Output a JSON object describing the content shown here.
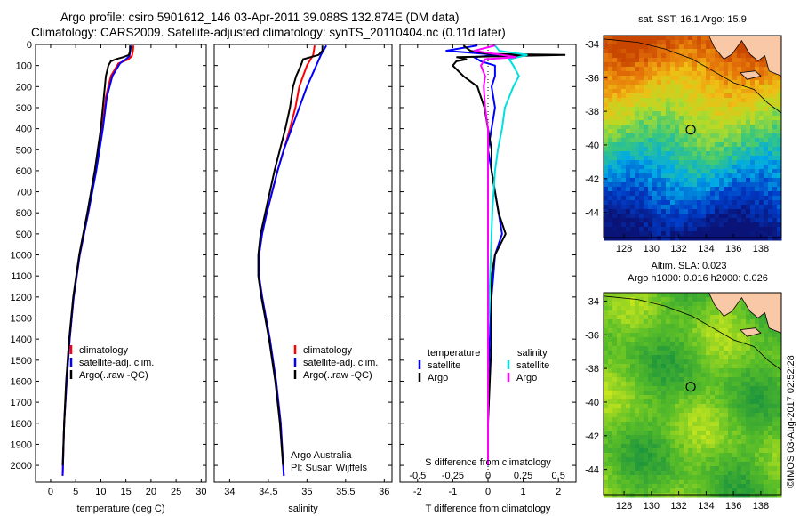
{
  "header": {
    "line1": "Argo profile: csiro 5901612_146 03-Apr-2011 39.088S 132.874E (DM data)",
    "line2": "Climatology: CARS2009. Satellite-adjusted climatology: synTS_20110404.nc (0.11d later)"
  },
  "credit": "©IMOS 03-Aug-2017 02:52:28",
  "colors": {
    "climatology": "#ff0000",
    "satellite": "#0000ff",
    "argo": "#000000",
    "sal_satellite": "#00e0e0",
    "sal_argo": "#ff00ff"
  },
  "chart_data": [
    {
      "type": "line",
      "xlabel": "temperature (deg C)",
      "ylabel": "",
      "xlim": [
        -3,
        31
      ],
      "ylim": [
        2080,
        0
      ],
      "xticks": [
        0,
        5,
        10,
        15,
        20,
        25,
        30
      ],
      "yticks": [
        0,
        100,
        200,
        300,
        400,
        500,
        600,
        700,
        800,
        900,
        1000,
        1100,
        1200,
        1300,
        1400,
        1500,
        1600,
        1700,
        1800,
        1900,
        2000
      ],
      "legend": [
        "climatology",
        "satellite-adj. clim.",
        "Argo(..raw -QC)"
      ],
      "legend_position": "lower-left",
      "series": [
        {
          "name": "climatology",
          "y": [
            5,
            30,
            55,
            70,
            90,
            150,
            250,
            400,
            600,
            800,
            1000,
            1200,
            1400,
            1600,
            1800,
            2050
          ],
          "x": [
            16.5,
            16.4,
            16.2,
            15.5,
            13.5,
            12.0,
            11.0,
            10.3,
            9.0,
            7.5,
            5.8,
            4.6,
            3.8,
            3.2,
            2.7,
            2.4
          ]
        },
        {
          "name": "satellite-adj. clim.",
          "y": [
            5,
            30,
            55,
            70,
            90,
            150,
            250,
            400,
            600,
            800,
            1000,
            1200,
            1400,
            1600,
            1800,
            2050
          ],
          "x": [
            16.0,
            15.9,
            15.7,
            15.0,
            13.8,
            12.3,
            11.2,
            10.4,
            9.1,
            7.5,
            5.8,
            4.6,
            3.8,
            3.2,
            2.7,
            2.4
          ]
        },
        {
          "name": "Argo(..raw -QC)",
          "y": [
            5,
            30,
            50,
            60,
            70,
            80,
            100,
            150,
            250,
            400,
            600,
            800,
            1000,
            1200,
            1400,
            1600,
            1800,
            2000
          ],
          "x": [
            15.8,
            15.8,
            15.6,
            14.5,
            13.0,
            12.0,
            11.5,
            11.0,
            10.6,
            10.0,
            8.8,
            7.3,
            5.7,
            4.5,
            3.7,
            3.1,
            2.7,
            2.4
          ]
        }
      ]
    },
    {
      "type": "line",
      "xlabel": "salinity",
      "ylabel": "",
      "xlim": [
        33.8,
        36.1
      ],
      "ylim": [
        2080,
        0
      ],
      "xticks": [
        34,
        34.5,
        35,
        35.5,
        36
      ],
      "legend": [
        "climatology",
        "satellite-adj. clim.",
        "Argo(..raw -QC)"
      ],
      "legend_position": "lower-center",
      "annotations": [
        "Argo Australia",
        "PI: Susan Wijffels"
      ],
      "series": [
        {
          "name": "climatology",
          "y": [
            5,
            50,
            100,
            200,
            300,
            400,
            500,
            600,
            700,
            800,
            900,
            1000,
            1100,
            1200,
            1400,
            1600,
            1800,
            2050
          ],
          "x": [
            35.1,
            35.08,
            35.0,
            34.9,
            34.85,
            34.78,
            34.7,
            34.62,
            34.55,
            34.48,
            34.42,
            34.38,
            34.38,
            34.42,
            34.52,
            34.6,
            34.66,
            34.7
          ]
        },
        {
          "name": "satellite-adj. clim.",
          "y": [
            5,
            50,
            100,
            200,
            300,
            400,
            500,
            600,
            700,
            800,
            900,
            1000,
            1100,
            1200,
            1400,
            1600,
            1800,
            2050
          ],
          "x": [
            35.25,
            35.18,
            35.12,
            35.0,
            34.9,
            34.8,
            34.7,
            34.62,
            34.55,
            34.48,
            34.42,
            34.38,
            34.38,
            34.42,
            34.52,
            34.6,
            34.66,
            34.7
          ]
        },
        {
          "name": "Argo(..raw -QC)",
          "y": [
            5,
            30,
            50,
            70,
            100,
            150,
            200,
            300,
            400,
            500,
            600,
            700,
            800,
            900,
            1000,
            1100,
            1200,
            1400,
            1600,
            1800,
            2000
          ],
          "x": [
            35.2,
            35.2,
            35.15,
            34.95,
            34.92,
            34.86,
            34.82,
            34.78,
            34.72,
            34.65,
            34.58,
            34.52,
            34.46,
            34.4,
            34.37,
            34.37,
            34.41,
            34.51,
            34.59,
            34.65,
            34.69
          ]
        }
      ]
    },
    {
      "type": "line",
      "xlabel": "T difference from climatology",
      "x2label": "S difference from climatology",
      "xlim": [
        -2.5,
        2.5
      ],
      "x2lim": [
        -0.625,
        0.625
      ],
      "ylim": [
        2080,
        0
      ],
      "xticks": [
        -2,
        -1,
        0,
        1,
        2
      ],
      "x2ticks": [
        -0.5,
        -0.25,
        0,
        0.25,
        0.5
      ],
      "legend_groups": [
        {
          "title": "temperature",
          "items": [
            "satellite",
            "Argo"
          ]
        },
        {
          "title": "salinity",
          "items": [
            "satellite",
            "Argo"
          ]
        }
      ],
      "legend_position": "lower-center",
      "series": [
        {
          "name": "satellite",
          "group": "temperature",
          "y": [
            5,
            30,
            50,
            60,
            80,
            100,
            150,
            200,
            300,
            400,
            500,
            600,
            700,
            800,
            900,
            1000,
            1200,
            1400,
            1600,
            1800,
            2000
          ],
          "x": [
            -0.3,
            -1.2,
            0.3,
            -0.4,
            -0.2,
            0.2,
            0.2,
            0.1,
            0.2,
            0.1,
            0.0,
            0.1,
            0.2,
            0.3,
            0.4,
            0.2,
            0.1,
            0.05,
            0.0,
            0.0,
            0.0
          ]
        },
        {
          "name": "Argo",
          "group": "temperature",
          "y": [
            5,
            30,
            45,
            50,
            60,
            70,
            80,
            100,
            150,
            200,
            300,
            400,
            500,
            600,
            700,
            800,
            900,
            1000,
            1100,
            1200,
            1400,
            1600,
            1800,
            2000
          ],
          "x": [
            -0.7,
            -0.5,
            0.0,
            2.2,
            -0.9,
            -0.6,
            -0.9,
            -1.0,
            -0.7,
            -0.3,
            -0.1,
            0.0,
            0.1,
            0.1,
            0.2,
            0.3,
            0.5,
            0.2,
            0.1,
            0.1,
            0.1,
            0.05,
            0.0,
            0.0
          ]
        },
        {
          "name": "satellite",
          "group": "salinity",
          "y": [
            5,
            30,
            50,
            70,
            100,
            150,
            200,
            300,
            400,
            500,
            600,
            800,
            1000,
            1200,
            1400,
            1600,
            1800,
            2000
          ],
          "x": [
            0.05,
            0.08,
            0.28,
            0.15,
            0.18,
            0.22,
            0.18,
            0.12,
            0.1,
            0.07,
            0.05,
            0.03,
            0.02,
            0.01,
            0.0,
            0.0,
            0.0,
            0.0
          ]
        },
        {
          "name": "Argo",
          "group": "salinity",
          "y": [
            5,
            30,
            50,
            60,
            70,
            100,
            150,
            200,
            300,
            400,
            500,
            600,
            800,
            1000,
            1200,
            1400,
            1600,
            1800,
            2000
          ],
          "x": [
            0.05,
            -0.1,
            0.1,
            0.2,
            -0.02,
            -0.05,
            -0.02,
            -0.03,
            -0.02,
            0.0,
            0.0,
            0.0,
            0.0,
            0.0,
            0.0,
            0.0,
            0.0,
            0.0,
            0.0
          ]
        }
      ]
    },
    {
      "type": "heatmap",
      "title": "sat. SST: 16.1  Argo: 15.9",
      "xticks": [
        128,
        130,
        132,
        134,
        136,
        138
      ],
      "yticks": [
        -34,
        -36,
        -38,
        -40,
        -42,
        -44
      ],
      "xlim": [
        126.5,
        139.5
      ],
      "ylim": [
        -45.5,
        -33.5
      ],
      "marker": {
        "lon": 132.874,
        "lat": -39.088
      }
    },
    {
      "type": "heatmap",
      "title": "Altim. SLA: 0.023",
      "subtitle": "Argo h1000: 0.016 h2000: 0.026",
      "xticks": [
        128,
        130,
        132,
        134,
        136,
        138
      ],
      "yticks": [
        -34,
        -36,
        -38,
        -40,
        -42,
        -44
      ],
      "xlim": [
        126.5,
        139.5
      ],
      "ylim": [
        -45.5,
        -33.5
      ],
      "marker": {
        "lon": 132.874,
        "lat": -39.088
      }
    }
  ]
}
